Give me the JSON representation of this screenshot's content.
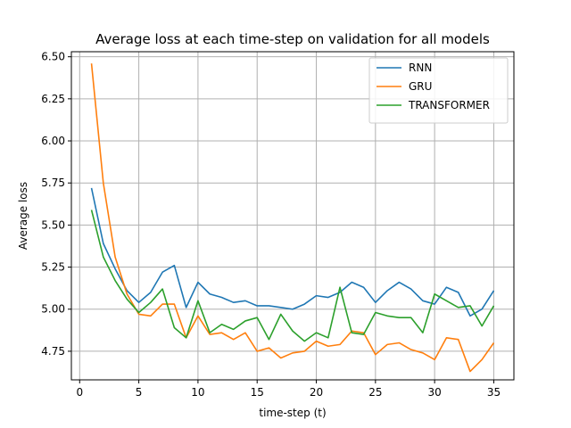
{
  "chart_data": {
    "type": "line",
    "title": "Average loss at each time-step on validation for all models",
    "xlabel": "time-step (t)",
    "ylabel": "Average loss",
    "xlim": [
      -0.7,
      36.7
    ],
    "ylim": [
      4.58,
      6.53
    ],
    "xticks": [
      0,
      5,
      10,
      15,
      20,
      25,
      30,
      35
    ],
    "xtick_labels": [
      "0",
      "5",
      "10",
      "15",
      "20",
      "25",
      "30",
      "35"
    ],
    "yticks": [
      4.75,
      5.0,
      5.25,
      5.5,
      5.75,
      6.0,
      6.25,
      6.5
    ],
    "ytick_labels": [
      "4.75",
      "5.00",
      "5.25",
      "5.50",
      "5.75",
      "6.00",
      "6.25",
      "6.50"
    ],
    "grid": true,
    "legend_position": "top-right",
    "x": [
      1,
      2,
      3,
      4,
      5,
      6,
      7,
      8,
      9,
      10,
      11,
      12,
      13,
      14,
      15,
      16,
      17,
      18,
      19,
      20,
      21,
      22,
      23,
      24,
      25,
      26,
      27,
      28,
      29,
      30,
      31,
      32,
      33,
      34,
      35
    ],
    "series": [
      {
        "name": "RNN",
        "color": "#1f77b4",
        "values": [
          5.72,
          5.39,
          5.24,
          5.11,
          5.04,
          5.1,
          5.22,
          5.26,
          5.01,
          5.16,
          5.09,
          5.07,
          5.04,
          5.05,
          5.02,
          5.02,
          5.01,
          5.0,
          5.03,
          5.08,
          5.07,
          5.1,
          5.16,
          5.13,
          5.04,
          5.11,
          5.16,
          5.12,
          5.05,
          5.03,
          5.13,
          5.1,
          4.96,
          5.0,
          5.11
        ]
      },
      {
        "name": "GRU",
        "color": "#ff7f0e",
        "values": [
          6.46,
          5.75,
          5.31,
          5.09,
          4.97,
          4.96,
          5.03,
          5.03,
          4.83,
          4.96,
          4.85,
          4.86,
          4.82,
          4.86,
          4.75,
          4.77,
          4.71,
          4.74,
          4.75,
          4.81,
          4.78,
          4.79,
          4.87,
          4.86,
          4.73,
          4.79,
          4.8,
          4.76,
          4.74,
          4.7,
          4.83,
          4.82,
          4.63,
          4.7,
          4.8
        ]
      },
      {
        "name": "TRANSFORMER",
        "color": "#2ca02c",
        "values": [
          5.59,
          5.31,
          5.17,
          5.06,
          4.98,
          5.04,
          5.12,
          4.89,
          4.83,
          5.05,
          4.86,
          4.91,
          4.88,
          4.93,
          4.95,
          4.82,
          4.97,
          4.87,
          4.81,
          4.86,
          4.83,
          5.13,
          4.86,
          4.85,
          4.98,
          4.96,
          4.95,
          4.95,
          4.86,
          5.09,
          5.05,
          5.01,
          5.02,
          4.9,
          5.02
        ]
      }
    ]
  }
}
